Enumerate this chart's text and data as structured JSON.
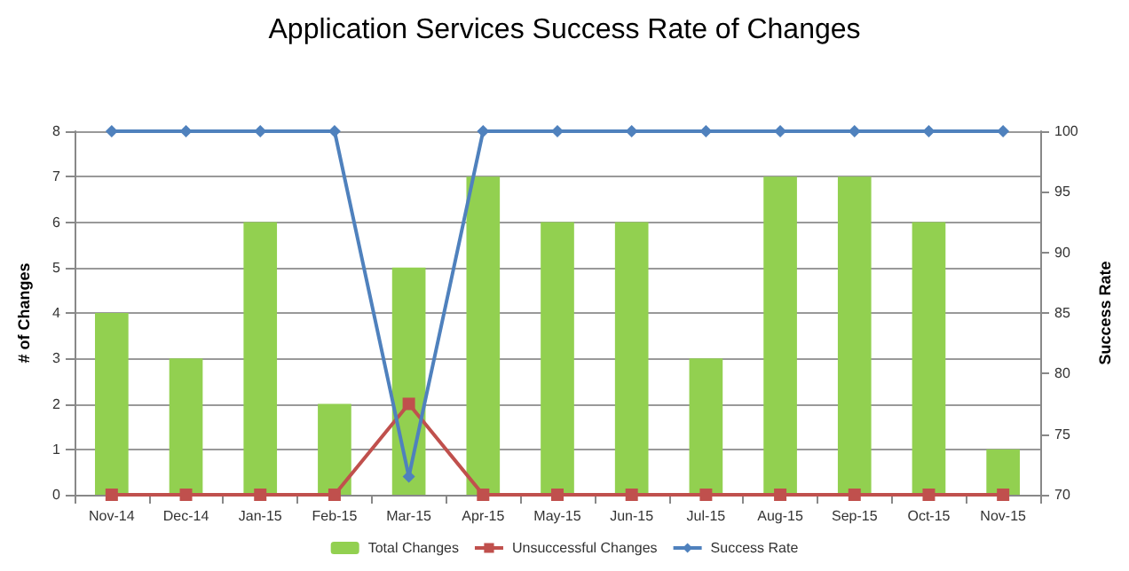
{
  "chart_data": {
    "type": "bar",
    "title": "Application Services Success Rate of Changes",
    "ylabel": "# of Changes",
    "y2label": "Success Rate",
    "categories": [
      "Nov-14",
      "Dec-14",
      "Jan-15",
      "Feb-15",
      "Mar-15",
      "Apr-15",
      "May-15",
      "Jun-15",
      "Jul-15",
      "Aug-15",
      "Sep-15",
      "Oct-15",
      "Nov-15"
    ],
    "series": [
      {
        "name": "Total Changes",
        "color": "#92d050",
        "values": [
          4,
          3,
          6,
          2,
          5,
          7,
          6,
          6,
          3,
          7,
          7,
          6,
          1
        ]
      },
      {
        "name": "Unsuccessful Changes",
        "type": "line",
        "marker": "square",
        "color": "#c0504d",
        "values": [
          0,
          0,
          0,
          0,
          2,
          0,
          0,
          0,
          0,
          0,
          0,
          0,
          0
        ]
      },
      {
        "name": "Success Rate",
        "type": "line",
        "marker": "diamond",
        "axis": "y2",
        "color": "#4f81bd",
        "values": [
          100,
          100,
          100,
          100,
          71.5,
          100,
          100,
          100,
          100,
          100,
          100,
          100,
          100
        ]
      }
    ],
    "ylim": [
      0,
      8
    ],
    "yticks": [
      0,
      1,
      2,
      3,
      4,
      5,
      6,
      7,
      8
    ],
    "y2lim": [
      70,
      100
    ],
    "y2ticks": [
      70,
      75,
      80,
      85,
      90,
      95,
      100
    ],
    "grid": "y",
    "legend": "bottom"
  }
}
